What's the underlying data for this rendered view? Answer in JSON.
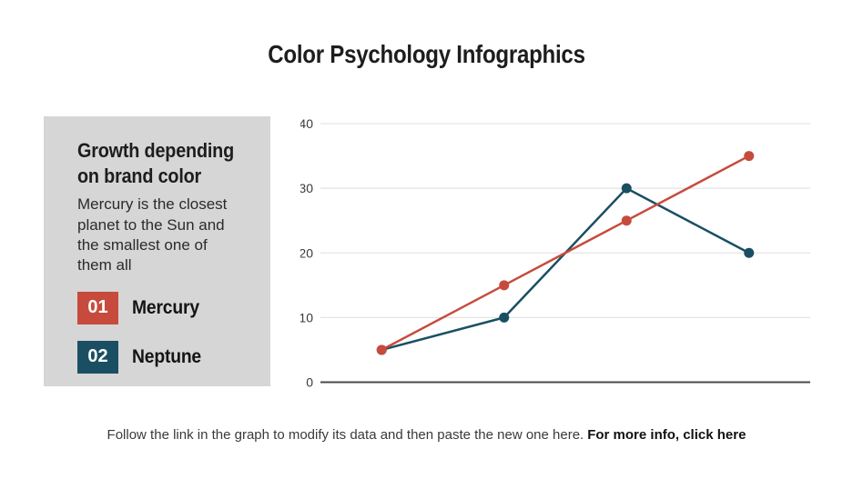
{
  "slide": {
    "title": "Color Psychology Infographics",
    "background": "#ffffff",
    "footer": {
      "text": "Follow the link in the graph to modify its data and then paste the new one here.",
      "link_text": "For more info, click here"
    }
  },
  "info_panel": {
    "background": "#d6d6d6",
    "heading": "Growth depending on brand color",
    "body": "Mercury is the closest planet to the Sun and the smallest one of them all",
    "legend": [
      {
        "number": "01",
        "label": "Mercury",
        "color": "#c74b3c"
      },
      {
        "number": "02",
        "label": "Neptune",
        "color": "#1a4f63"
      }
    ]
  },
  "chart_data": {
    "type": "line",
    "x": [
      1,
      2,
      3,
      4
    ],
    "series": [
      {
        "name": "Mercury",
        "color": "#c74b3c",
        "values": [
          5,
          15,
          25,
          35
        ]
      },
      {
        "name": "Neptune",
        "color": "#1a4f63",
        "values": [
          5,
          10,
          30,
          20
        ]
      }
    ],
    "title": "",
    "xlabel": "",
    "ylabel": "",
    "ylim": [
      0,
      40
    ],
    "yticks": [
      0,
      10,
      20,
      30,
      40
    ],
    "grid": true,
    "grid_color": "#e4e4e4",
    "baseline_color": "#4a4a4a",
    "tick_color": "#3a3a3a",
    "legend_position": "left-panel",
    "x_tick_labels_visible": false
  }
}
